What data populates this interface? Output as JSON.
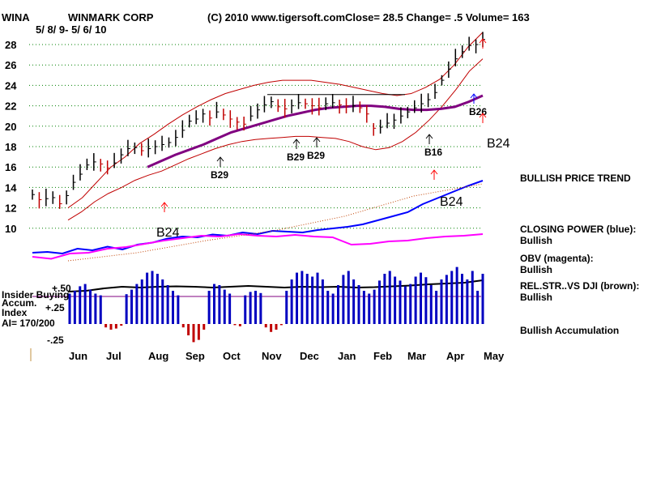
{
  "header": {
    "ticker": "WINA",
    "company": "WINMARK CORP",
    "copyright": "(C) 2010 www.tigersoft.com",
    "quote": "Close=  28.5  Change= .5 Volume= 163",
    "date_range": "5/ 8/ 9-  5/ 6/ 10"
  },
  "panel_labels": {
    "insider_buying": "Insider Buying",
    "accum": "Accum.",
    "index": "Index",
    "ai": "AI= 170/200"
  },
  "indicator_notes": [
    {
      "title": "BULLISH PRICE TREND",
      "status": ""
    },
    {
      "title": "CLOSING POWER (blue):",
      "status": "Bullish"
    },
    {
      "title": "OBV (magenta):",
      "status": "Bullish"
    },
    {
      "title": "REL.STR..VS DJI (brown):",
      "status": "Bullish"
    },
    {
      "title": "Bullish Accumulation",
      "status": ""
    }
  ],
  "chart_data": {
    "type": "line",
    "title": "WINMARK CORP",
    "price_axis": {
      "ticks": [
        "28",
        "26",
        "24",
        "22",
        "20",
        "18",
        "16",
        "14",
        "12",
        "10"
      ],
      "ylim": [
        9,
        30
      ]
    },
    "accum_axis": {
      "ticks": [
        "+.50",
        "+.25",
        "-.25"
      ]
    },
    "x_ticks": [
      "Jun",
      "Jul",
      "Aug",
      "Sep",
      "Oct",
      "Nov",
      "Dec",
      "Jan",
      "Feb",
      "Mar",
      "Apr",
      "May"
    ],
    "series": [
      {
        "name": "Price (close)",
        "color": "#000000",
        "values": [
          13.3,
          12.8,
          12.9,
          13.0,
          12.4,
          13.2,
          14.5,
          15.3,
          16.2,
          16.5,
          16.3,
          15.9,
          16.4,
          17.2,
          17.8,
          17.9,
          17.6,
          17.8,
          18.0,
          18.2,
          18.4,
          18.9,
          19.6,
          20.5,
          20.7,
          21.2,
          20.8,
          21.4,
          21.1,
          20.7,
          20.4,
          20.2,
          21.0,
          21.6,
          22.1,
          22.4,
          21.9,
          21.7,
          22.0,
          22.3,
          22.2,
          22.0,
          21.8,
          22.2,
          22.3,
          22.1,
          22.0,
          22.0,
          21.8,
          21.2,
          19.8,
          19.9,
          20.3,
          20.6,
          21.0,
          21.4,
          21.8,
          22.2,
          22.6,
          23.3,
          24.5,
          25.6,
          26.6,
          27.3,
          27.9,
          28.0,
          28.5
        ]
      },
      {
        "name": "Moving average (purple)",
        "color": "#800080",
        "values": [
          16.0,
          16.6,
          17.2,
          17.7,
          18.2,
          18.8,
          19.4,
          19.8,
          20.2,
          20.6,
          21.0,
          21.3,
          21.6,
          21.8,
          21.9,
          22.0,
          22.0,
          21.9,
          21.7,
          21.6,
          21.6,
          21.7,
          21.9,
          22.4,
          23.0
        ]
      },
      {
        "name": "Upper band",
        "color": "#c00000",
        "values": [
          12.0,
          13.0,
          14.5,
          16.0,
          17.0,
          18.3,
          19.2,
          20.2,
          21.1,
          21.9,
          22.6,
          23.2,
          23.6,
          24.0,
          24.3,
          24.5,
          24.5,
          24.5,
          24.3,
          24.1,
          23.8,
          23.5,
          23.2,
          23.0,
          23.2,
          23.8,
          24.6,
          26.0,
          27.8,
          29.2
        ]
      },
      {
        "name": "Lower band",
        "color": "#c00000",
        "values": [
          10.8,
          11.6,
          12.6,
          13.4,
          14.0,
          14.7,
          15.2,
          15.6,
          16.2,
          16.8,
          17.3,
          17.8,
          18.2,
          18.5,
          18.7,
          18.8,
          18.9,
          19.0,
          19.0,
          18.9,
          18.8,
          18.5,
          18.0,
          17.7,
          17.9,
          18.5,
          19.4,
          20.6,
          22.0,
          23.6,
          25.4,
          26.6
        ]
      },
      {
        "name": "Closing Power (blue)",
        "color": "#0000ff",
        "values": [
          0.2,
          0.22,
          0.18,
          0.3,
          0.26,
          0.35,
          0.28,
          0.4,
          0.45,
          0.55,
          0.6,
          0.58,
          0.65,
          0.62,
          0.7,
          0.66,
          0.74,
          0.72,
          0.7,
          0.76,
          0.8,
          0.84,
          0.9,
          1.0,
          1.1,
          1.2,
          1.4,
          1.55,
          1.7,
          1.85,
          1.98
        ]
      },
      {
        "name": "OBV (magenta)",
        "color": "#ff00ff",
        "values": [
          0.1,
          0.05,
          0.18,
          0.2,
          0.3,
          0.34,
          0.42,
          0.5,
          0.56,
          0.62,
          0.6,
          0.66,
          0.62,
          0.6,
          0.64,
          0.6,
          0.58,
          0.4,
          0.42,
          0.48,
          0.5,
          0.56,
          0.6,
          0.62,
          0.66
        ]
      },
      {
        "name": "Rel. Str. vs DJI (brown)",
        "color": "#000000",
        "values": [
          0.8,
          0.82,
          0.88,
          0.92,
          0.9,
          0.92,
          0.93,
          0.92,
          0.9,
          0.92,
          0.94,
          0.92,
          0.9,
          0.92,
          0.91,
          0.92,
          0.9,
          0.91,
          0.93,
          0.95,
          0.98,
          1.0,
          1.02,
          1.08
        ]
      }
    ],
    "accum_histogram": [
      0.05,
      0.1,
      0.18,
      0.22,
      0.12,
      0.05,
      0.02,
      -0.06,
      -0.1,
      -0.08,
      -0.03,
      0.04,
      0.12,
      0.22,
      0.3,
      0.42,
      0.45,
      0.4,
      0.3,
      0.2,
      0.1,
      0.02,
      -0.06,
      -0.2,
      -0.32,
      -0.28,
      -0.1,
      0.1,
      0.22,
      0.2,
      0.12,
      0.05,
      -0.02,
      -0.04,
      0.02,
      0.08,
      0.1,
      0.06,
      -0.06,
      -0.14,
      -0.1,
      -0.02,
      0.1,
      0.3,
      0.42,
      0.45,
      0.4,
      0.35,
      0.42,
      0.3,
      0.1,
      0.05,
      0.2,
      0.38,
      0.45,
      0.3,
      0.2,
      0.1,
      0.05,
      0.12,
      0.28,
      0.4,
      0.45,
      0.35,
      0.28,
      0.18,
      0.22,
      0.35,
      0.42,
      0.34,
      0.2,
      0.1,
      0.3,
      0.38,
      0.45,
      0.52,
      0.4,
      0.3,
      0.45,
      0.1,
      0.4
    ],
    "signals": [
      {
        "label": "B29",
        "date_index": 16,
        "type": "buy"
      },
      {
        "label": "B29",
        "date_index": 32,
        "type": "buy"
      },
      {
        "label": "B29",
        "date_index": 37,
        "type": "buy"
      },
      {
        "label": "B16",
        "date_index": 51,
        "type": "buy"
      },
      {
        "label": "B26",
        "date_index": 56,
        "type": "buy"
      },
      {
        "label": "B24",
        "date_index": 60,
        "type": "buy"
      },
      {
        "label": "B24",
        "date_index": 12,
        "type": "buy"
      },
      {
        "label": "B24",
        "date_index": 48,
        "type": "buy"
      }
    ]
  }
}
